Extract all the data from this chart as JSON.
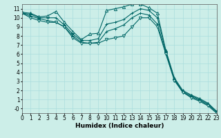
{
  "xlabel": "Humidex (Indice chaleur)",
  "bg_color": "#cceee8",
  "grid_color": "#aadddd",
  "line_color": "#006666",
  "xlim": [
    0,
    23
  ],
  "ylim": [
    -0.5,
    11.5
  ],
  "xticks": [
    0,
    1,
    2,
    3,
    4,
    5,
    6,
    7,
    8,
    9,
    10,
    11,
    12,
    13,
    14,
    15,
    16,
    17,
    18,
    19,
    20,
    21,
    22,
    23
  ],
  "yticks": [
    0,
    1,
    2,
    3,
    4,
    5,
    6,
    7,
    8,
    9,
    10,
    11
  ],
  "ytick_labels": [
    "-0",
    "1",
    "2",
    "3",
    "4",
    "5",
    "6",
    "7",
    "8",
    "9",
    "10",
    "11"
  ],
  "series": [
    {
      "x": [
        0,
        1,
        2,
        3,
        4,
        5,
        6,
        7,
        8,
        9,
        10,
        11,
        12,
        13,
        14,
        15,
        16,
        17,
        18,
        19,
        20,
        21,
        22,
        23
      ],
      "y": [
        10.6,
        10.5,
        10.1,
        10.2,
        10.7,
        9.5,
        8.5,
        7.6,
        8.2,
        8.3,
        10.8,
        11.0,
        11.2,
        11.5,
        11.5,
        11.1,
        10.5,
        6.4,
        3.4,
        2.0,
        1.5,
        1.1,
        0.6,
        -0.3
      ],
      "marker": "^",
      "filled": false
    },
    {
      "x": [
        0,
        1,
        2,
        3,
        4,
        5,
        6,
        7,
        8,
        9,
        10,
        11,
        12,
        13,
        14,
        15,
        16,
        17,
        18,
        19,
        20,
        21,
        22,
        23
      ],
      "y": [
        10.5,
        10.4,
        10.0,
        10.0,
        10.0,
        9.2,
        8.2,
        7.5,
        7.5,
        7.7,
        9.3,
        9.5,
        9.8,
        10.5,
        11.0,
        10.8,
        10.0,
        6.3,
        3.3,
        1.9,
        1.4,
        1.0,
        0.5,
        -0.3
      ],
      "marker": "+",
      "filled": true
    },
    {
      "x": [
        0,
        1,
        2,
        3,
        4,
        5,
        6,
        7,
        8,
        9,
        10,
        11,
        12,
        13,
        14,
        15,
        16,
        17,
        18,
        19,
        20,
        21,
        22,
        23
      ],
      "y": [
        10.5,
        10.2,
        9.9,
        9.7,
        9.5,
        9.0,
        8.0,
        7.3,
        7.2,
        7.3,
        8.5,
        8.8,
        9.2,
        10.0,
        10.5,
        10.3,
        9.3,
        6.1,
        3.2,
        1.8,
        1.3,
        0.9,
        0.4,
        -0.4
      ],
      "marker": "+",
      "filled": true
    },
    {
      "x": [
        0,
        1,
        2,
        3,
        4,
        5,
        6,
        7,
        8,
        9,
        10,
        11,
        12,
        13,
        14,
        15,
        16,
        17,
        18,
        19,
        20,
        21,
        22,
        23
      ],
      "y": [
        10.5,
        10.0,
        9.7,
        9.5,
        9.5,
        9.0,
        7.8,
        7.2,
        7.2,
        7.2,
        7.6,
        7.8,
        8.0,
        9.0,
        10.0,
        10.0,
        9.0,
        6.0,
        3.1,
        1.8,
        1.2,
        0.8,
        0.3,
        -0.5
      ],
      "marker": "v",
      "filled": false
    }
  ]
}
